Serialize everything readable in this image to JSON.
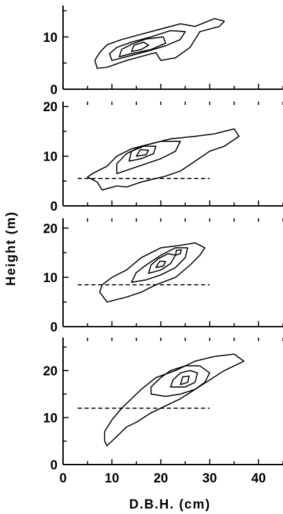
{
  "chart_data": {
    "type": "contour",
    "xlabel": "D.B.H. (cm)",
    "ylabel": "Height (m)",
    "xlim": [
      0,
      45
    ],
    "xticks": [
      0,
      10,
      20,
      30,
      40
    ],
    "panels": [
      {
        "id": "panel-1",
        "ylim": [
          0,
          16
        ],
        "yticks": [
          0,
          10
        ],
        "reference_height": null,
        "contours": [
          [
            [
              7,
              4
            ],
            [
              9,
              4.2
            ],
            [
              13,
              5.5
            ],
            [
              17,
              6.5
            ],
            [
              19,
              7
            ],
            [
              20,
              5.5
            ],
            [
              23,
              6
            ],
            [
              26,
              8
            ],
            [
              28,
              11
            ],
            [
              32,
              12
            ],
            [
              33,
              13
            ],
            [
              31,
              13.5
            ],
            [
              27,
              12
            ],
            [
              24,
              12.5
            ],
            [
              20,
              11.5
            ],
            [
              16,
              10.5
            ],
            [
              12,
              9.5
            ],
            [
              9,
              8.5
            ],
            [
              7.5,
              7
            ],
            [
              6.5,
              5.5
            ],
            [
              7,
              4
            ]
          ],
          [
            [
              10,
              5.5
            ],
            [
              13,
              6.2
            ],
            [
              17,
              7.2
            ],
            [
              21,
              8.3
            ],
            [
              24,
              9.5
            ],
            [
              25,
              11
            ],
            [
              22,
              11.2
            ],
            [
              18,
              10
            ],
            [
              14,
              9
            ],
            [
              11,
              8
            ],
            [
              9.5,
              6.8
            ],
            [
              10,
              5.5
            ]
          ],
          [
            [
              11.5,
              6.2
            ],
            [
              14,
              6.8
            ],
            [
              18,
              7.6
            ],
            [
              21,
              8.8
            ],
            [
              20.5,
              10
            ],
            [
              17,
              9.6
            ],
            [
              14,
              8.6
            ],
            [
              12,
              7.6
            ],
            [
              11.5,
              6.2
            ]
          ],
          [
            [
              14,
              7.2
            ],
            [
              16,
              7.6
            ],
            [
              17.5,
              8.4
            ],
            [
              16.5,
              9
            ],
            [
              14.5,
              8.4
            ],
            [
              14,
              7.2
            ]
          ]
        ]
      },
      {
        "id": "panel-2",
        "ylim": [
          0,
          21
        ],
        "yticks": [
          0,
          10,
          20
        ],
        "reference_height": 5.5,
        "contours": [
          [
            [
              8,
              3.2
            ],
            [
              11,
              4
            ],
            [
              13,
              3.8
            ],
            [
              16,
              4.8
            ],
            [
              21,
              6
            ],
            [
              24,
              7
            ],
            [
              27,
              9
            ],
            [
              30,
              11
            ],
            [
              33,
              12
            ],
            [
              36,
              14
            ],
            [
              35,
              15.5
            ],
            [
              31,
              14.5
            ],
            [
              27,
              14
            ],
            [
              22,
              13.5
            ],
            [
              18,
              12.5
            ],
            [
              14,
              11.5
            ],
            [
              11,
              10
            ],
            [
              9,
              8
            ],
            [
              6,
              6.5
            ],
            [
              5,
              5.8
            ],
            [
              7,
              4.8
            ],
            [
              8,
              3.2
            ]
          ],
          [
            [
              11,
              6.5
            ],
            [
              14,
              7.5
            ],
            [
              17,
              8.5
            ],
            [
              20,
              9.5
            ],
            [
              23,
              11
            ],
            [
              24,
              13
            ],
            [
              20,
              13
            ],
            [
              16,
              12
            ],
            [
              13,
              10.5
            ],
            [
              11,
              8.5
            ],
            [
              11,
              6.5
            ]
          ],
          [
            [
              13.5,
              9
            ],
            [
              16,
              9.5
            ],
            [
              18.5,
              10.5
            ],
            [
              19,
              12
            ],
            [
              16.5,
              12
            ],
            [
              14,
              11
            ],
            [
              13.5,
              9
            ]
          ],
          [
            [
              15,
              10
            ],
            [
              17,
              10.3
            ],
            [
              17.5,
              11.2
            ],
            [
              15.8,
              11.3
            ],
            [
              15,
              10
            ]
          ]
        ]
      },
      {
        "id": "panel-3",
        "ylim": [
          0,
          22
        ],
        "yticks": [
          0,
          10,
          20
        ],
        "reference_height": 8.5,
        "contours": [
          [
            [
              9,
              5
            ],
            [
              13,
              6
            ],
            [
              16,
              7
            ],
            [
              19,
              8.5
            ],
            [
              23,
              10
            ],
            [
              26,
              12.5
            ],
            [
              28,
              14.5
            ],
            [
              29,
              16
            ],
            [
              27,
              17
            ],
            [
              24,
              16.5
            ],
            [
              20,
              16
            ],
            [
              16,
              14
            ],
            [
              13,
              11.5
            ],
            [
              10,
              10
            ],
            [
              8,
              8.5
            ],
            [
              7.5,
              7
            ],
            [
              9,
              5
            ]
          ],
          [
            [
              14,
              9
            ],
            [
              17,
              9.5
            ],
            [
              20,
              10.5
            ],
            [
              23,
              12
            ],
            [
              25,
              14
            ],
            [
              25.5,
              16
            ],
            [
              23,
              16
            ],
            [
              20,
              14.5
            ],
            [
              17,
              12.5
            ],
            [
              15,
              11
            ],
            [
              14,
              9
            ]
          ],
          [
            [
              17.5,
              10.8
            ],
            [
              20,
              11.5
            ],
            [
              22,
              12.8
            ],
            [
              23,
              14.5
            ],
            [
              21.5,
              14.8
            ],
            [
              19.5,
              13.8
            ],
            [
              18,
              12.5
            ],
            [
              17.5,
              10.8
            ]
          ],
          [
            [
              19,
              12
            ],
            [
              20.5,
              12.3
            ],
            [
              21,
              13.2
            ],
            [
              19.8,
              13.3
            ],
            [
              19,
              12
            ]
          ],
          [
            [
              23,
              14.5
            ],
            [
              24,
              14.8
            ],
            [
              24.2,
              15.6
            ],
            [
              23.2,
              15.5
            ],
            [
              23,
              14.5
            ]
          ]
        ]
      },
      {
        "id": "panel-4",
        "ylim": [
          0,
          27
        ],
        "yticks": [
          0,
          10,
          20
        ],
        "reference_height": 12,
        "contours": [
          [
            [
              9,
              4
            ],
            [
              11,
              6
            ],
            [
              13,
              8
            ],
            [
              15,
              9
            ],
            [
              18,
              11
            ],
            [
              21,
              12.5
            ],
            [
              24,
              14
            ],
            [
              27,
              16
            ],
            [
              30,
              18
            ],
            [
              33,
              20
            ],
            [
              37,
              22
            ],
            [
              35,
              23.5
            ],
            [
              31,
              23
            ],
            [
              27,
              22
            ],
            [
              23,
              20
            ],
            [
              19,
              18.5
            ],
            [
              16,
              16
            ],
            [
              14,
              14
            ],
            [
              12,
              12
            ],
            [
              10,
              9.5
            ],
            [
              8.5,
              7
            ],
            [
              8.5,
              5
            ],
            [
              9,
              4
            ]
          ],
          [
            [
              18,
              15
            ],
            [
              21,
              14.5
            ],
            [
              24,
              15
            ],
            [
              27,
              16
            ],
            [
              29,
              17.5
            ],
            [
              30,
              19.5
            ],
            [
              28,
              21
            ],
            [
              25,
              21
            ],
            [
              22,
              20
            ],
            [
              20,
              18.5
            ],
            [
              18,
              16.5
            ],
            [
              18,
              15
            ]
          ],
          [
            [
              22,
              16.5
            ],
            [
              25,
              16.5
            ],
            [
              27,
              17.5
            ],
            [
              27.5,
              19.5
            ],
            [
              26,
              20
            ],
            [
              24,
              19.5
            ],
            [
              22.5,
              18
            ],
            [
              22,
              16.5
            ]
          ],
          [
            [
              24,
              17
            ],
            [
              25.5,
              17.5
            ],
            [
              25.8,
              18.8
            ],
            [
              24.5,
              18.7
            ],
            [
              24,
              17
            ]
          ]
        ]
      }
    ]
  }
}
